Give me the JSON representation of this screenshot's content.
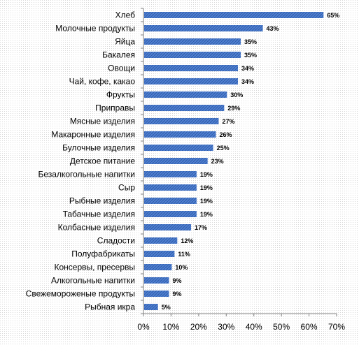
{
  "chart_data": {
    "type": "bar",
    "orientation": "horizontal",
    "categories": [
      "Хлеб",
      "Молочные продукты",
      "Яйца",
      "Бакалея",
      "Овощи",
      "Чай, кофе, какао",
      "Фрукты",
      "Приправы",
      "Мясные изделия",
      "Макаронные изделия",
      "Булочные изделия",
      "Детское питание",
      "Безалкогольные напитки",
      "Сыр",
      "Рыбные изделия",
      "Табачные изделия",
      "Колбасные изделия",
      "Сладости",
      "Полуфабрикаты",
      "Консервы, пресервы",
      "Алкогольные напитки",
      "Свежемороженые продукты",
      "Рыбная икра"
    ],
    "values": [
      65,
      43,
      35,
      35,
      34,
      34,
      30,
      29,
      27,
      26,
      25,
      23,
      19,
      19,
      19,
      19,
      17,
      12,
      11,
      10,
      9,
      9,
      5
    ],
    "data_labels": [
      "65%",
      "43%",
      "35%",
      "35%",
      "34%",
      "34%",
      "30%",
      "29%",
      "27%",
      "26%",
      "25%",
      "23%",
      "19%",
      "19%",
      "19%",
      "19%",
      "17%",
      "12%",
      "11%",
      "10%",
      "9%",
      "9%",
      "5%"
    ],
    "xlim": [
      0,
      70
    ],
    "x_ticks": [
      "0%",
      "10%",
      "20%",
      "30%",
      "40%",
      "50%",
      "60%",
      "70%"
    ],
    "title": "",
    "xlabel": "",
    "ylabel": "",
    "grid": false,
    "legend": "none",
    "bar_color": "#4472c4",
    "plot_background": "#efefef"
  }
}
